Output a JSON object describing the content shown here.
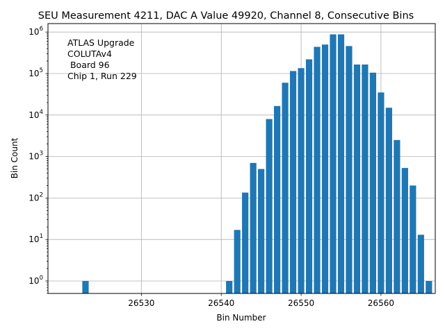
{
  "chart_data": {
    "type": "bar",
    "title": "SEU Measurement 4211, DAC A Value 49920, Channel 8, Consecutive Bins",
    "xlabel": "Bin Number",
    "ylabel": "Bin Count",
    "yscale": "log",
    "xlim": [
      26518.3,
      26566.8
    ],
    "ylim": [
      0.5,
      1600000
    ],
    "grid": true,
    "bar_color": "#1f77b4",
    "x_ticks": [
      26530,
      26540,
      26550,
      26560
    ],
    "x_tick_labels": [
      "26530",
      "26540",
      "26550",
      "26560"
    ],
    "y_ticks": [
      1,
      10,
      100,
      1000,
      10000,
      100000,
      1000000
    ],
    "y_tick_labels": [
      {
        "base": "10",
        "exp": "0"
      },
      {
        "base": "10",
        "exp": "1"
      },
      {
        "base": "10",
        "exp": "2"
      },
      {
        "base": "10",
        "exp": "3"
      },
      {
        "base": "10",
        "exp": "4"
      },
      {
        "base": "10",
        "exp": "5"
      },
      {
        "base": "10",
        "exp": "6"
      }
    ],
    "annotation": [
      "ATLAS Upgrade",
      "COLUTAv4",
      " Board 96",
      "Chip 1, Run 229"
    ],
    "x": [
      26523,
      26541,
      26542,
      26543,
      26544,
      26545,
      26546,
      26547,
      26548,
      26549,
      26550,
      26551,
      26552,
      26553,
      26554,
      26555,
      26556,
      26557,
      26558,
      26559,
      26560,
      26561,
      26562,
      26563,
      26564,
      26565,
      26566
    ],
    "values": [
      1,
      1,
      17,
      135,
      700,
      500,
      8000,
      16500,
      60000,
      115000,
      135000,
      220000,
      440000,
      500000,
      880000,
      880000,
      460000,
      165000,
      165000,
      105000,
      35000,
      15000,
      2500,
      530,
      200,
      13,
      1
    ]
  }
}
